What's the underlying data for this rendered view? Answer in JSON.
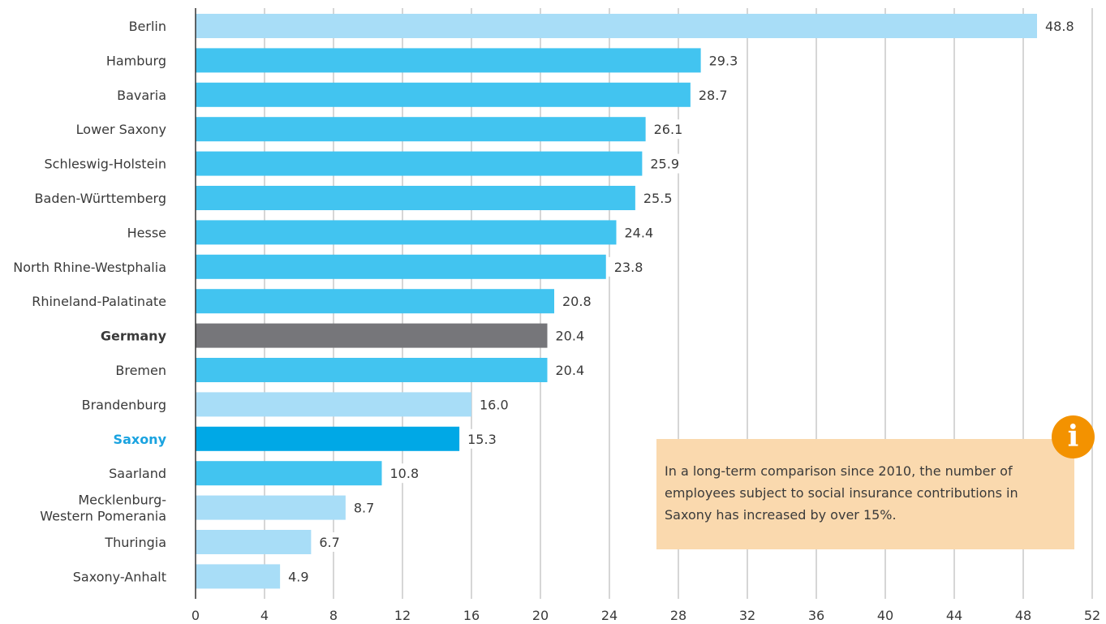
{
  "chart_data": {
    "type": "bar",
    "orientation": "horizontal",
    "categories": [
      "Berlin",
      "Hamburg",
      "Bavaria",
      "Lower Saxony",
      "Schleswig-Holstein",
      "Baden-Württemberg",
      "Hesse",
      "North Rhine-Westphalia",
      "Rhineland-Palatinate",
      "Germany",
      "Bremen",
      "Brandenburg",
      "Saxony",
      "Saarland",
      "Mecklenburg-\nWestern Pomerania",
      "Thuringia",
      "Saxony-Anhalt"
    ],
    "values": [
      48.8,
      29.3,
      28.7,
      26.1,
      25.9,
      25.5,
      24.4,
      23.8,
      20.8,
      20.4,
      20.4,
      16.0,
      15.3,
      10.8,
      8.7,
      6.7,
      4.9
    ],
    "value_labels": [
      "48.8",
      "29.3",
      "28.7",
      "26.1",
      "25.9",
      "25.5",
      "24.4",
      "23.8",
      "20.8",
      "20.4",
      "20.4",
      "16.0",
      "15.3",
      "10.8",
      "8.7",
      "6.7",
      "4.9"
    ],
    "bar_colors": [
      "#a8ddf7",
      "#42c4f0",
      "#42c4f0",
      "#42c4f0",
      "#42c4f0",
      "#42c4f0",
      "#42c4f0",
      "#42c4f0",
      "#42c4f0",
      "#76767a",
      "#42c4f0",
      "#a8ddf7",
      "#00a8e6",
      "#42c4f0",
      "#a8ddf7",
      "#a8ddf7",
      "#a8ddf7"
    ],
    "label_styles": [
      "normal",
      "normal",
      "normal",
      "normal",
      "normal",
      "normal",
      "normal",
      "normal",
      "normal",
      "bold",
      "normal",
      "normal",
      "highlight",
      "normal",
      "normal",
      "normal",
      "normal"
    ],
    "xlim": [
      0,
      52
    ],
    "xticks": [
      0,
      4,
      8,
      12,
      16,
      20,
      24,
      28,
      32,
      36,
      40,
      44,
      48,
      52
    ],
    "xtick_labels": [
      "0",
      "4",
      "8",
      "12",
      "16",
      "20",
      "24",
      "28",
      "32",
      "36",
      "40",
      "44",
      "48",
      "52"
    ],
    "grid": true,
    "title": "",
    "xlabel": "",
    "ylabel": ""
  },
  "note": {
    "text": "In a long-term comparison since 2010, the number of employees subject to social insurance contributions in Saxony has increased by over 15%.",
    "icon": "info-icon",
    "icon_glyph": "i",
    "background_color": "#fad9ae",
    "icon_color": "#f39200"
  }
}
